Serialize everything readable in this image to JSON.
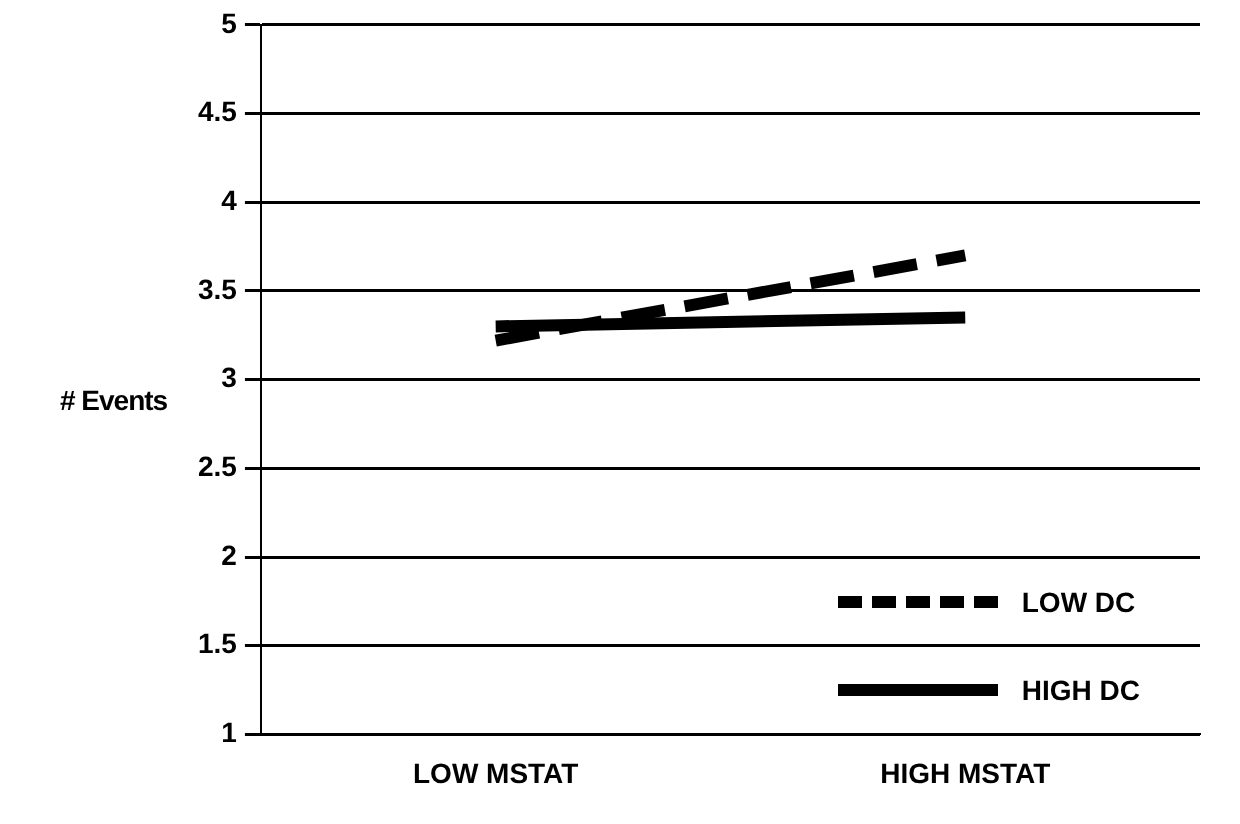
{
  "chart_data": {
    "type": "line",
    "ylabel": "# Events",
    "categories": [
      "LOW MSTAT",
      "HIGH MSTAT"
    ],
    "series": [
      {
        "name": "LOW DC",
        "color": "#000000",
        "line_style": "dashed",
        "values": [
          3.22,
          3.7
        ]
      },
      {
        "name": "HIGH DC",
        "color": "#000000",
        "line_style": "solid",
        "values": [
          3.3,
          3.35
        ]
      }
    ],
    "ylim": [
      1,
      5
    ],
    "yticks": [
      1,
      1.5,
      2,
      2.5,
      3,
      3.5,
      4,
      4.5,
      5
    ],
    "grid": "y",
    "legend": "bottom right",
    "marker": "none"
  }
}
